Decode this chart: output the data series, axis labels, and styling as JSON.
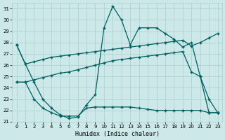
{
  "xlabel": "Humidex (Indice chaleur)",
  "background_color": "#cce8e8",
  "grid_color": "#aacece",
  "line_color": "#006060",
  "xlim": [
    -0.5,
    23.5
  ],
  "ylim": [
    21,
    31.5
  ],
  "yticks": [
    21,
    22,
    23,
    24,
    25,
    26,
    27,
    28,
    29,
    30,
    31
  ],
  "xticks": [
    0,
    1,
    2,
    3,
    4,
    5,
    6,
    7,
    8,
    9,
    10,
    11,
    12,
    13,
    14,
    15,
    16,
    17,
    18,
    19,
    20,
    21,
    22,
    23
  ],
  "series": [
    [
      27.8,
      26.1,
      24.5,
      23.0,
      22.2,
      21.6,
      21.3,
      21.4,
      22.5,
      23.4,
      29.3,
      31.2,
      30.0,
      27.8,
      29.3,
      29.3,
      29.3,
      28.8,
      28.3,
      27.6,
      28.0,
      25.0,
      23.0,
      21.8
    ],
    [
      27.8,
      26.1,
      26.3,
      26.5,
      26.7,
      26.8,
      26.9,
      27.0,
      27.1,
      27.2,
      27.3,
      27.4,
      27.5,
      27.6,
      27.7,
      27.8,
      27.9,
      28.0,
      28.1,
      28.2,
      27.7,
      28.0,
      28.4,
      28.8
    ],
    [
      24.5,
      24.5,
      24.7,
      24.9,
      25.1,
      25.3,
      25.4,
      25.6,
      25.8,
      26.0,
      26.2,
      26.4,
      26.5,
      26.6,
      26.7,
      26.8,
      26.9,
      27.0,
      27.1,
      27.2,
      25.4,
      25.0,
      21.8,
      21.8
    ],
    [
      24.5,
      24.5,
      23.0,
      22.2,
      21.8,
      21.5,
      21.5,
      21.5,
      22.2,
      22.3,
      22.3,
      22.3,
      22.3,
      22.3,
      22.2,
      22.1,
      22.0,
      22.0,
      22.0,
      22.0,
      22.0,
      22.0,
      21.8,
      21.8
    ]
  ]
}
